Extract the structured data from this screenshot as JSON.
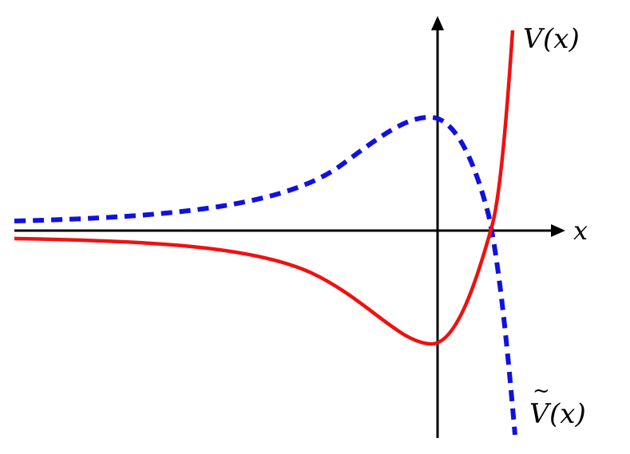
{
  "labels": {
    "x_axis": "x",
    "v_arg": "(x)",
    "vt_arg": "(x)",
    "v_letter": "V",
    "vt_letter": "V",
    "tilde": "~"
  },
  "curves": [
    {
      "name": "V(x)",
      "style": "solid",
      "color": "#ee1111"
    },
    {
      "name": "Ṽ(x)",
      "style": "dashed",
      "color": "#1111dd"
    }
  ],
  "colors": {
    "axes": "#000000",
    "v_curve": "#ee1111",
    "vt_curve": "#1111dd"
  }
}
